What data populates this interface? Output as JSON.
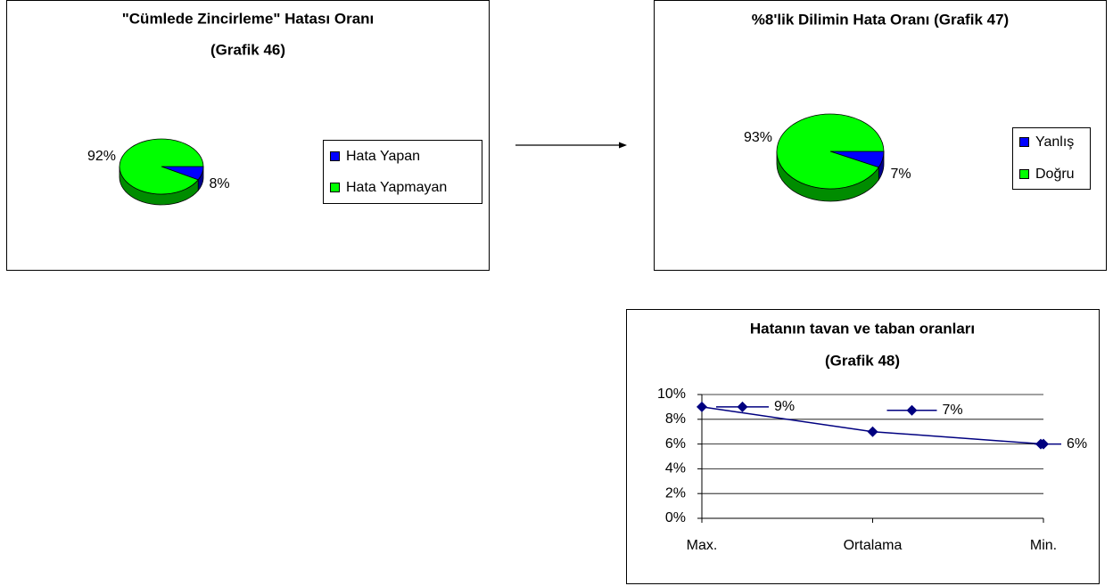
{
  "chart_data": [
    {
      "type": "pie",
      "title": [
        "\"Cümlede Zincirleme\" Hatası Oranı",
        "(Grafik 46)"
      ],
      "categories": [
        "Hata Yapan",
        "Hata Yapmayan"
      ],
      "values": [
        8,
        92
      ],
      "value_labels": [
        "8%",
        "92%"
      ],
      "colors": [
        "#0000ff",
        "#00ff00"
      ],
      "legend": "right"
    },
    {
      "type": "pie",
      "title": [
        "%8'lik Dilimin Hata Oranı (Grafik 47)"
      ],
      "categories": [
        "Yanlış",
        "Doğru"
      ],
      "values": [
        7,
        93
      ],
      "value_labels": [
        "7%",
        "93%"
      ],
      "colors": [
        "#0000ff",
        "#00ff00"
      ],
      "legend": "right"
    },
    {
      "type": "line",
      "title": [
        "Hatanın tavan ve taban oranları",
        "(Grafik 48)"
      ],
      "categories": [
        "Max.",
        "Ortalama",
        "Min."
      ],
      "values": [
        9,
        7,
        6
      ],
      "value_labels": [
        "9%",
        "7%",
        "6%"
      ],
      "color": "#000080",
      "ylim": [
        0,
        10
      ],
      "yticks": [
        {
          "value": 0,
          "label": "0%"
        },
        {
          "value": 2,
          "label": "2%"
        },
        {
          "value": 4,
          "label": "4%"
        },
        {
          "value": 6,
          "label": "6%"
        },
        {
          "value": 8,
          "label": "8%"
        },
        {
          "value": 10,
          "label": "10%"
        }
      ],
      "grid": true
    }
  ]
}
